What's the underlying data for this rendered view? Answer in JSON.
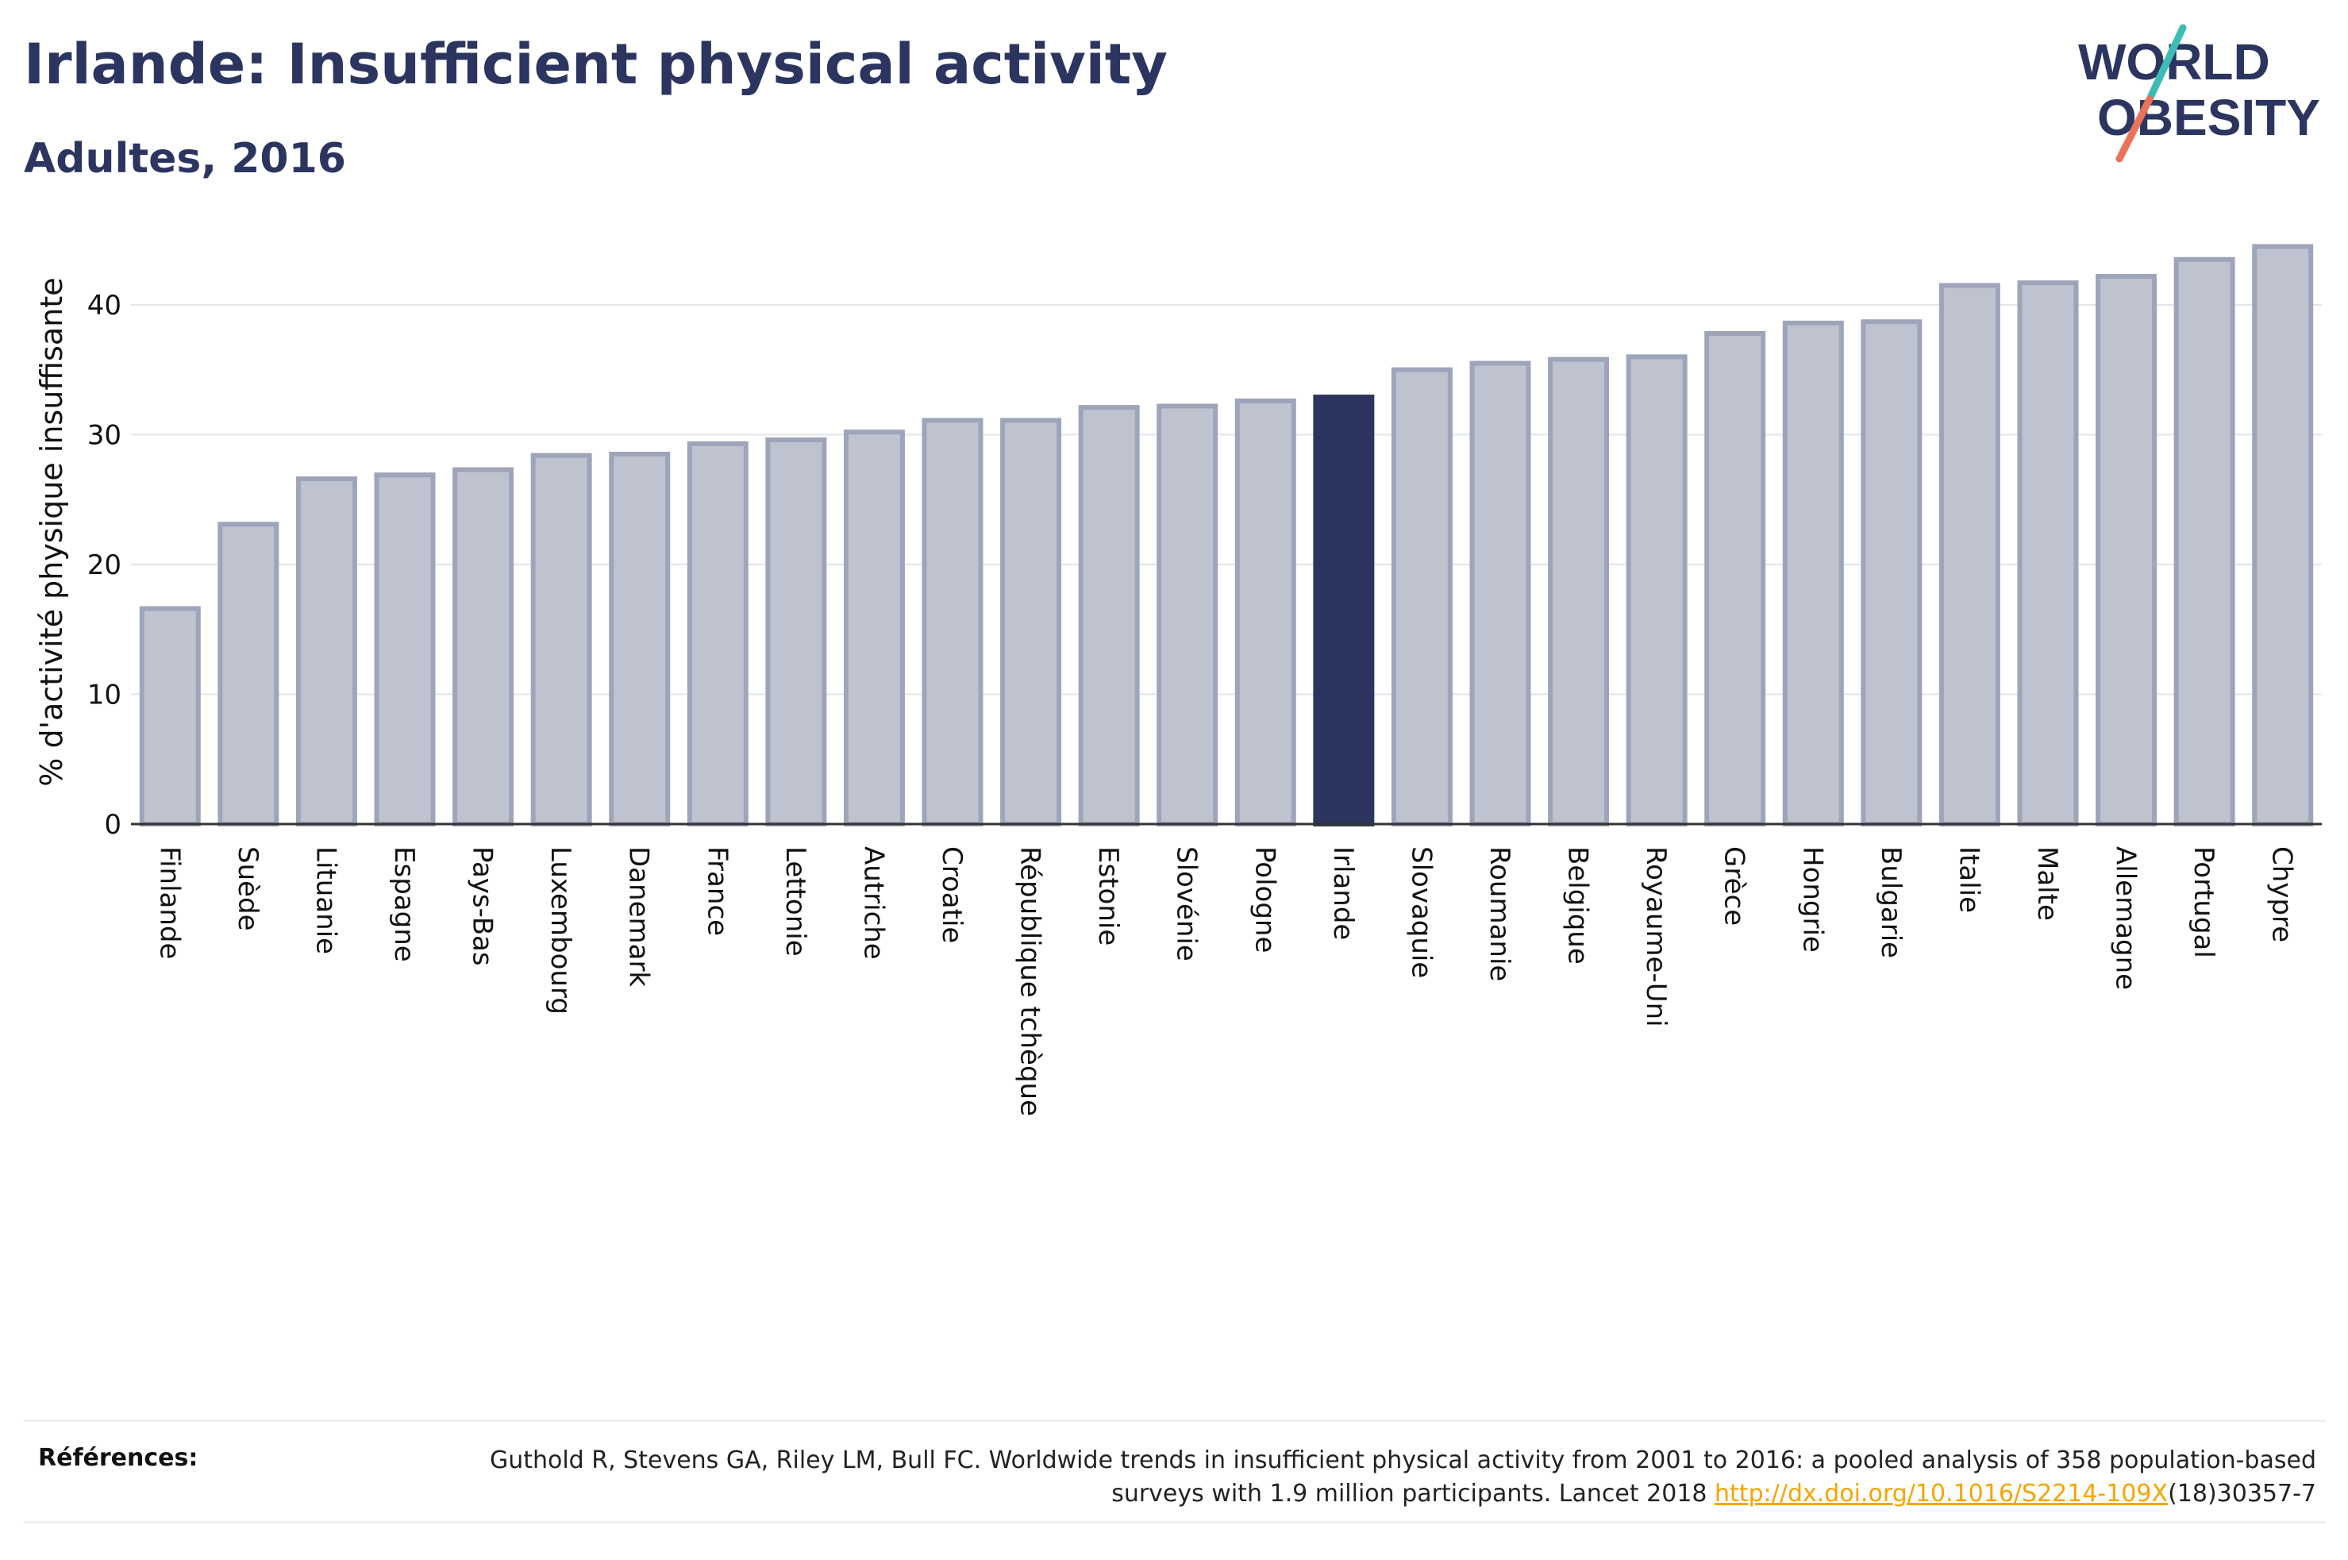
{
  "header": {
    "title": "Irlande: Insufficient physical activity",
    "subtitle": "Adultes, 2016"
  },
  "logo": {
    "line1": "WORLD",
    "line2": "OBESITY",
    "slash_color_top": "#3cbcb4",
    "slash_color_bottom": "#e8735a",
    "text_color": "#2b355f"
  },
  "colors": {
    "highlight": "#2b355f",
    "bar_fill": "#bfc3cf",
    "bar_stroke": "#9ea4ba",
    "grid": "#e3e5ea"
  },
  "chart_data": {
    "type": "bar",
    "ylabel": "% d'activité physique insuffisante",
    "xlabel": "",
    "ylim": [
      0,
      45
    ],
    "yticks": [
      0,
      10,
      20,
      30,
      40
    ],
    "grid": true,
    "highlight": "Irlande",
    "categories": [
      "Finlande",
      "Suède",
      "Lituanie",
      "Espagne",
      "Pays-Bas",
      "Luxembourg",
      "Danemark",
      "France",
      "Lettonie",
      "Autriche",
      "Croatie",
      "République tchèque",
      "Estonie",
      "Slovénie",
      "Pologne",
      "Irlande",
      "Slovaquie",
      "Roumanie",
      "Belgique",
      "Royaume-Uni",
      "Grèce",
      "Hongrie",
      "Bulgarie",
      "Italie",
      "Malte",
      "Allemagne",
      "Portugal",
      "Chypre"
    ],
    "values": [
      16.6,
      23.1,
      26.6,
      26.9,
      27.3,
      28.4,
      28.5,
      29.3,
      29.6,
      30.2,
      31.1,
      31.1,
      32.1,
      32.2,
      32.6,
      32.9,
      35.0,
      35.5,
      35.8,
      36.0,
      37.8,
      38.6,
      38.7,
      41.5,
      41.7,
      42.2,
      43.5,
      44.5
    ]
  },
  "references": {
    "label": "Références:",
    "text_before": "Guthold R, Stevens GA, Riley LM, Bull FC. Worldwide trends in insufficient physical activity from 2001 to 2016: a pooled analysis of 358 population-based surveys with 1.9 million participants. Lancet 2018 ",
    "link": "http://dx.doi.org/10.1016/S2214-109X",
    "text_after": "(18)30357-7"
  }
}
